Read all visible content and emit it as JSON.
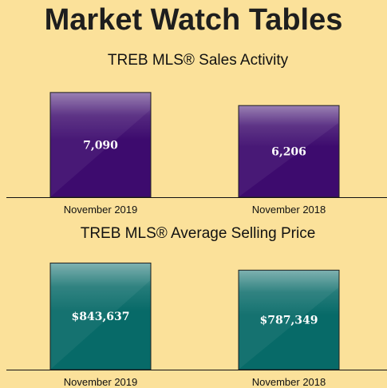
{
  "page_title": "Market Watch Tables",
  "chart_data": [
    {
      "type": "bar",
      "title": "TREB MLS® Sales Activity",
      "categories": [
        "November 2019",
        "November 2018"
      ],
      "values": [
        7090,
        6206
      ],
      "value_labels": [
        "7,090",
        "6,206"
      ],
      "ylim": [
        0,
        8000
      ],
      "color": "#3d0b6e",
      "grid": false
    },
    {
      "type": "bar",
      "title": "TREB MLS® Average Selling Price",
      "categories": [
        "November 2019",
        "November 2018"
      ],
      "values": [
        843637,
        787349
      ],
      "value_labels": [
        "$843,637",
        "$787,349"
      ],
      "ylim": [
        0,
        935000
      ],
      "color": "#076a68",
      "grid": false
    }
  ]
}
